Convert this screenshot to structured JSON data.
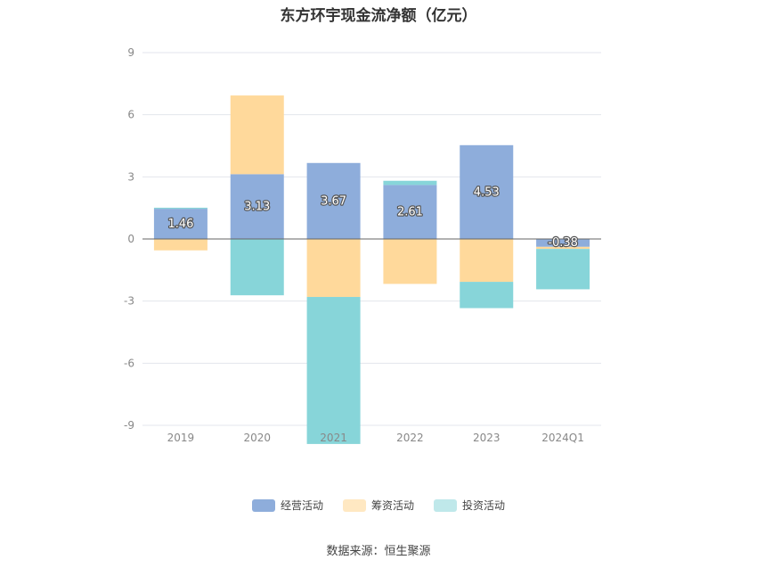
{
  "chart_data": {
    "type": "bar",
    "stacked": true,
    "title": "东方环宇现金流净额（亿元）",
    "xlabel": "",
    "ylabel": "",
    "categories": [
      "2019",
      "2020",
      "2021",
      "2022",
      "2023",
      "2024Q1"
    ],
    "ylim": [
      -9,
      9
    ],
    "yticks": [
      -9,
      -6,
      -3,
      0,
      3,
      6,
      9
    ],
    "grid": true,
    "legend_position": "bottom",
    "series": [
      {
        "name": "经营活动",
        "color": "#8eaddb",
        "values": [
          1.46,
          3.13,
          3.67,
          2.61,
          4.53,
          -0.38
        ],
        "data_labels": [
          "1.46",
          "3.13",
          "3.67",
          "2.61",
          "4.53",
          "-0.38"
        ]
      },
      {
        "name": "筹资活动",
        "color": "#ffd99b",
        "values": [
          -0.55,
          3.8,
          -2.8,
          -2.17,
          -2.07,
          -0.1
        ]
      },
      {
        "name": "投资活动",
        "color": "#87d5d9",
        "values": [
          0.05,
          -2.72,
          -7.1,
          0.2,
          -1.27,
          -1.95
        ]
      }
    ],
    "legend_colors": [
      "#8eaddb",
      "#ffe8c2",
      "#bfe8ea"
    ],
    "source": "数据来源：恒生聚源"
  }
}
